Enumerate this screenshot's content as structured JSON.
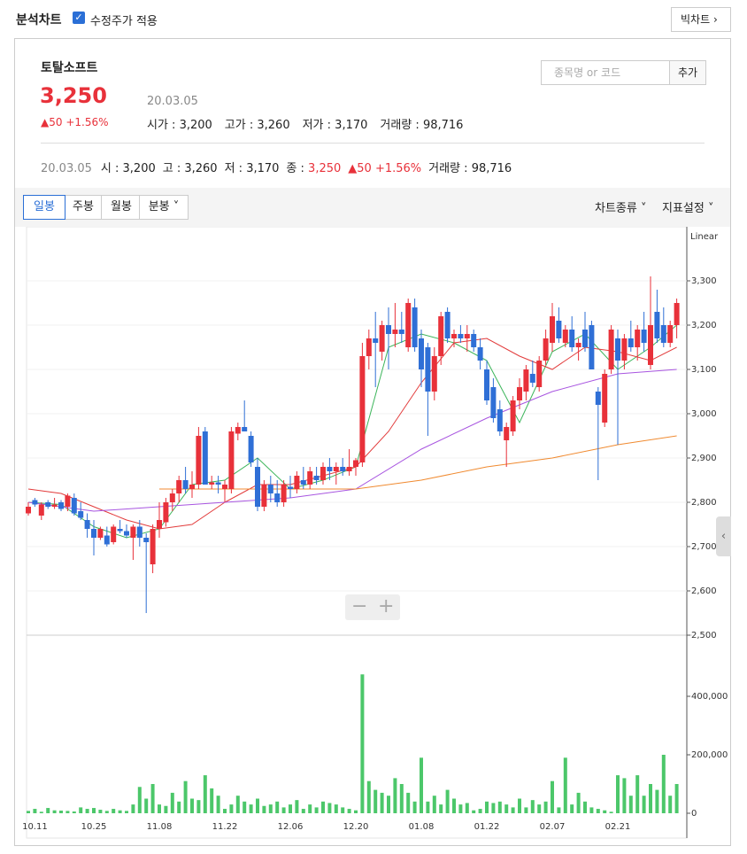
{
  "header": {
    "tab_title": "분석차트",
    "checkbox_label": "수정주가 적용",
    "big_chart_button": "빅차트",
    "stock_name": "토탈소프트",
    "price": "3,250",
    "change": "▲50 +1.56%",
    "date": "20.03.05",
    "fields": [
      {
        "label": "시가",
        "value": "3,200"
      },
      {
        "label": "고가",
        "value": "3,260"
      },
      {
        "label": "저가",
        "value": "3,170"
      },
      {
        "label": "거래량",
        "value": "98,716"
      }
    ],
    "search_placeholder": "종목명 or 코드",
    "add_button": "추가"
  },
  "summary": {
    "date": "20.03.05",
    "items": [
      {
        "label": "시",
        "value": "3,200"
      },
      {
        "label": "고",
        "value": "3,260"
      },
      {
        "label": "저",
        "value": "3,170"
      },
      {
        "label": "종",
        "value": "3,250"
      }
    ],
    "change": "▲50 +1.56%",
    "volume_label": "거래량",
    "volume": "98,716"
  },
  "toolbar": {
    "tabs": [
      "일봉",
      "주봉",
      "월봉",
      "분봉"
    ],
    "chart_type": "차트종류",
    "indicator": "지표설정"
  },
  "chart_data": [
    {
      "type": "candlestick",
      "scale_label": "Linear",
      "up_color": "#e8313a",
      "down_color": "#2f6fd6",
      "ylim": [
        2500,
        3410
      ],
      "yticks": [
        {
          "value": 2500,
          "label": "2,500"
        },
        {
          "value": 2600,
          "label": "2,600"
        },
        {
          "value": 2700,
          "label": "2,700"
        },
        {
          "value": 2800,
          "label": "2,800"
        },
        {
          "value": 2900,
          "label": "2,900"
        },
        {
          "value": 3000,
          "label": "3,000"
        },
        {
          "value": 3100,
          "label": "3,100"
        },
        {
          "value": 3200,
          "label": "3,200"
        },
        {
          "value": 3300,
          "label": "3,300"
        }
      ],
      "grid": true,
      "ohlc": [
        [
          2775,
          2800,
          2770,
          2790
        ],
        [
          2805,
          2810,
          2790,
          2795
        ],
        [
          2770,
          2800,
          2760,
          2795
        ],
        [
          2800,
          2805,
          2785,
          2790
        ],
        [
          2790,
          2810,
          2785,
          2795
        ],
        [
          2800,
          2805,
          2780,
          2785
        ],
        [
          2790,
          2820,
          2780,
          2815
        ],
        [
          2810,
          2820,
          2770,
          2775
        ],
        [
          2780,
          2800,
          2760,
          2765
        ],
        [
          2760,
          2775,
          2720,
          2740
        ],
        [
          2740,
          2760,
          2680,
          2720
        ],
        [
          2720,
          2745,
          2715,
          2740
        ],
        [
          2725,
          2745,
          2700,
          2705
        ],
        [
          2710,
          2750,
          2705,
          2745
        ],
        [
          2740,
          2760,
          2730,
          2735
        ],
        [
          2735,
          2750,
          2720,
          2725
        ],
        [
          2720,
          2750,
          2670,
          2745
        ],
        [
          2745,
          2760,
          2700,
          2720
        ],
        [
          2720,
          2730,
          2550,
          2710
        ],
        [
          2660,
          2750,
          2640,
          2740
        ],
        [
          2740,
          2800,
          2720,
          2760
        ],
        [
          2755,
          2810,
          2745,
          2800
        ],
        [
          2800,
          2830,
          2780,
          2820
        ],
        [
          2820,
          2860,
          2800,
          2850
        ],
        [
          2850,
          2880,
          2820,
          2830
        ],
        [
          2830,
          2870,
          2810,
          2840
        ],
        [
          2840,
          2970,
          2830,
          2950
        ],
        [
          2960,
          2970,
          2840,
          2840
        ],
        [
          2840,
          2860,
          2830,
          2845
        ],
        [
          2845,
          2860,
          2820,
          2840
        ],
        [
          2830,
          2850,
          2800,
          2840
        ],
        [
          2830,
          2970,
          2820,
          2960
        ],
        [
          2955,
          2980,
          2940,
          2970
        ],
        [
          2970,
          3030,
          2960,
          2960
        ],
        [
          2950,
          2960,
          2880,
          2890
        ],
        [
          2880,
          2900,
          2780,
          2790
        ],
        [
          2790,
          2850,
          2780,
          2840
        ],
        [
          2840,
          2860,
          2800,
          2820
        ],
        [
          2820,
          2850,
          2790,
          2800
        ],
        [
          2800,
          2850,
          2790,
          2840
        ],
        [
          2835,
          2860,
          2810,
          2830
        ],
        [
          2830,
          2870,
          2820,
          2860
        ],
        [
          2850,
          2880,
          2830,
          2840
        ],
        [
          2840,
          2880,
          2830,
          2870
        ],
        [
          2860,
          2880,
          2840,
          2850
        ],
        [
          2850,
          2890,
          2840,
          2880
        ],
        [
          2880,
          2900,
          2850,
          2870
        ],
        [
          2870,
          2890,
          2840,
          2880
        ],
        [
          2880,
          2900,
          2860,
          2870
        ],
        [
          2870,
          2920,
          2860,
          2880
        ],
        [
          2880,
          2900,
          2860,
          2895
        ],
        [
          2890,
          3160,
          2880,
          3130
        ],
        [
          3130,
          3190,
          3100,
          3170
        ],
        [
          3170,
          3230,
          3060,
          3160
        ],
        [
          3140,
          3210,
          3120,
          3200
        ],
        [
          3200,
          3240,
          3100,
          3180
        ],
        [
          3180,
          3250,
          3150,
          3190
        ],
        [
          3190,
          3230,
          3160,
          3180
        ],
        [
          3150,
          3260,
          3140,
          3250
        ],
        [
          3240,
          3260,
          3140,
          3150
        ],
        [
          3170,
          3190,
          3060,
          3100
        ],
        [
          3150,
          3160,
          2950,
          3050
        ],
        [
          3050,
          3150,
          3030,
          3130
        ],
        [
          3130,
          3230,
          3110,
          3220
        ],
        [
          3230,
          3240,
          3160,
          3170
        ],
        [
          3170,
          3190,
          3150,
          3180
        ],
        [
          3180,
          3200,
          3160,
          3170
        ],
        [
          3170,
          3200,
          3140,
          3180
        ],
        [
          3180,
          3190,
          3140,
          3150
        ],
        [
          3150,
          3170,
          3100,
          3120
        ],
        [
          3100,
          3120,
          3020,
          3030
        ],
        [
          3060,
          3080,
          2980,
          2990
        ],
        [
          3010,
          3030,
          2950,
          2960
        ],
        [
          2940,
          2980,
          2880,
          2970
        ],
        [
          2960,
          3040,
          2950,
          3030
        ],
        [
          3030,
          3080,
          3010,
          3060
        ],
        [
          3050,
          3110,
          3030,
          3100
        ],
        [
          3090,
          3120,
          3060,
          3070
        ],
        [
          3060,
          3130,
          3050,
          3120
        ],
        [
          3120,
          3190,
          3110,
          3170
        ],
        [
          3160,
          3250,
          3140,
          3220
        ],
        [
          3210,
          3240,
          3160,
          3170
        ],
        [
          3160,
          3200,
          3150,
          3190
        ],
        [
          3190,
          3220,
          3140,
          3150
        ],
        [
          3150,
          3170,
          3120,
          3160
        ],
        [
          3190,
          3230,
          3140,
          3150
        ],
        [
          3200,
          3210,
          3100,
          3100
        ],
        [
          3050,
          3060,
          2850,
          3020
        ],
        [
          2980,
          3100,
          2970,
          3090
        ],
        [
          3100,
          3200,
          3090,
          3190
        ],
        [
          3170,
          3190,
          2930,
          3120
        ],
        [
          3120,
          3180,
          3100,
          3170
        ],
        [
          3170,
          3210,
          3140,
          3150
        ],
        [
          3150,
          3200,
          3120,
          3190
        ],
        [
          3190,
          3230,
          3140,
          3160
        ],
        [
          3110,
          3310,
          3100,
          3200
        ],
        [
          3230,
          3280,
          3160,
          3170
        ],
        [
          3200,
          3240,
          3150,
          3160
        ],
        [
          3160,
          3210,
          3150,
          3200
        ],
        [
          3200,
          3260,
          3170,
          3250
        ]
      ],
      "series": [
        {
          "color": "#3cb55a",
          "x": [
            0,
            5,
            10,
            15,
            20,
            25,
            30,
            35,
            40,
            45,
            50,
            55,
            60,
            65,
            70,
            75,
            80,
            85,
            90,
            95,
            99
          ],
          "values": [
            2800,
            2795,
            2745,
            2720,
            2740,
            2840,
            2850,
            2900,
            2830,
            2850,
            2880,
            3150,
            3180,
            3160,
            3120,
            2980,
            3140,
            3180,
            3100,
            3150,
            3200
          ]
        },
        {
          "color": "#e23b3b",
          "x": [
            0,
            5,
            10,
            15,
            20,
            25,
            30,
            35,
            40,
            45,
            50,
            55,
            60,
            65,
            70,
            75,
            80,
            85,
            90,
            95,
            99
          ],
          "values": [
            2830,
            2820,
            2790,
            2760,
            2740,
            2750,
            2800,
            2840,
            2840,
            2860,
            2880,
            2960,
            3070,
            3160,
            3170,
            3130,
            3100,
            3150,
            3140,
            3120,
            3150
          ]
        },
        {
          "color": "#a855e0",
          "x": [
            0,
            10,
            20,
            30,
            40,
            50,
            60,
            70,
            80,
            90,
            99
          ],
          "values": [
            2800,
            2780,
            2790,
            2800,
            2810,
            2830,
            2920,
            2990,
            3050,
            3090,
            3100
          ]
        },
        {
          "color": "#f08a30",
          "x": [
            20,
            30,
            40,
            50,
            60,
            70,
            80,
            90,
            99
          ],
          "values": [
            2830,
            2830,
            2830,
            2830,
            2850,
            2880,
            2900,
            2930,
            2950
          ]
        }
      ]
    },
    {
      "type": "bar",
      "color": "#4cc76a",
      "ylim": [
        0,
        600000
      ],
      "yticks": [
        0,
        {
          "value": 200000,
          "label": "200,000"
        },
        {
          "value": 400000,
          "label": "400,000"
        }
      ],
      "categories": [
        null,
        "10.11",
        null,
        null,
        null,
        null,
        null,
        null,
        null,
        null,
        "10.25",
        null,
        null,
        null,
        null,
        null,
        null,
        null,
        null,
        null,
        "11.08",
        null,
        null,
        null,
        null,
        null,
        null,
        null,
        null,
        null,
        "11.22",
        null,
        null,
        null,
        null,
        null,
        null,
        null,
        null,
        null,
        "12.06",
        null,
        null,
        null,
        null,
        null,
        null,
        null,
        null,
        null,
        "12.20",
        null,
        null,
        null,
        null,
        null,
        null,
        null,
        null,
        null,
        "01.08",
        null,
        null,
        null,
        null,
        null,
        null,
        null,
        null,
        null,
        "01.22",
        null,
        null,
        null,
        null,
        null,
        null,
        null,
        null,
        null,
        "02.07",
        null,
        null,
        null,
        null,
        null,
        null,
        null,
        null,
        null,
        "02.21",
        null,
        null,
        null,
        null,
        null,
        null,
        null,
        null,
        null
      ],
      "values": [
        8000,
        15000,
        5000,
        18000,
        10000,
        9000,
        8000,
        6000,
        20000,
        15000,
        18000,
        12000,
        8000,
        15000,
        10000,
        8000,
        30000,
        90000,
        50000,
        100000,
        30000,
        25000,
        70000,
        40000,
        110000,
        50000,
        45000,
        130000,
        85000,
        60000,
        15000,
        30000,
        60000,
        40000,
        30000,
        50000,
        25000,
        30000,
        40000,
        20000,
        30000,
        45000,
        15000,
        30000,
        20000,
        40000,
        35000,
        30000,
        20000,
        15000,
        10000,
        475000,
        110000,
        80000,
        70000,
        60000,
        120000,
        100000,
        70000,
        40000,
        190000,
        40000,
        60000,
        30000,
        80000,
        50000,
        30000,
        35000,
        10000,
        15000,
        40000,
        35000,
        40000,
        30000,
        20000,
        50000,
        20000,
        45000,
        30000,
        40000,
        110000,
        20000,
        190000,
        30000,
        70000,
        40000,
        20000,
        15000,
        10000,
        5000,
        130000,
        120000,
        60000,
        130000,
        60000,
        100000,
        80000,
        200000,
        60000,
        100000
      ]
    }
  ]
}
